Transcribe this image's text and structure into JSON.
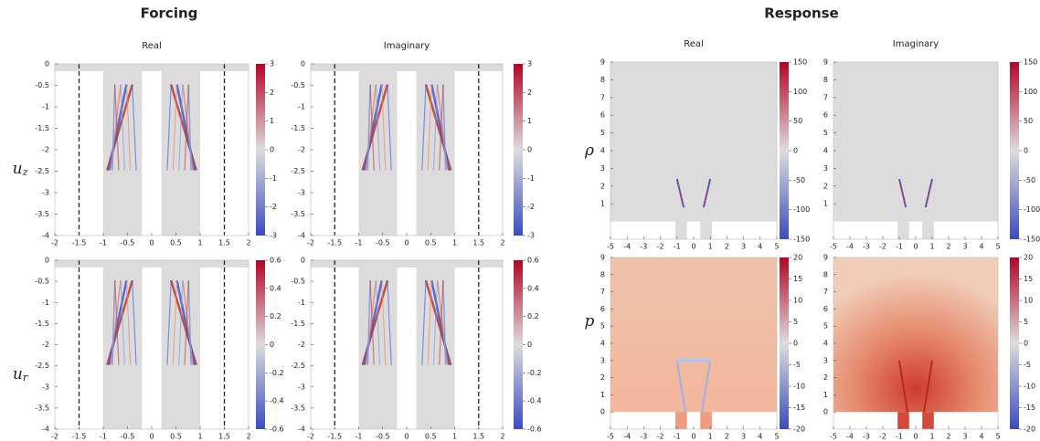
{
  "headers": [
    "Forcing",
    "Response"
  ],
  "row_labels": [
    {
      "base": "u",
      "sub": "z"
    },
    {
      "base": "u",
      "sub": "r"
    },
    {
      "base": "ρ"
    },
    {
      "base": "p"
    }
  ],
  "chart_data": [
    {
      "type": "heatmap",
      "title": "Real",
      "xlim": [
        -2,
        2
      ],
      "ylim": [
        -4,
        0
      ],
      "xticks": [
        -2,
        -1.5,
        -1,
        -0.5,
        0,
        0.5,
        1,
        1.5,
        2
      ],
      "yticks": [
        0,
        -0.5,
        -1,
        -1.5,
        -2,
        -2.5,
        -3,
        -3.5,
        -4
      ],
      "clim": [
        -3,
        3
      ],
      "cticks": [
        3,
        2,
        1,
        0,
        -1,
        -2,
        -3
      ],
      "colors": [
        "#3a4cc0",
        "#dddddd",
        "#b40426"
      ]
    },
    {
      "type": "heatmap",
      "title": "Imaginary",
      "xlim": [
        -2,
        2
      ],
      "ylim": [
        -4,
        0
      ],
      "xticks": [
        -2,
        -1.5,
        -1,
        -0.5,
        0,
        0.5,
        1,
        1.5,
        2
      ],
      "yticks": [
        0,
        -0.5,
        -1,
        -1.5,
        -2,
        -2.5,
        -3,
        -3.5,
        -4
      ],
      "clim": [
        -3,
        3
      ],
      "cticks": [
        3,
        2,
        1,
        0,
        -1,
        -2,
        -3
      ],
      "colors": [
        "#3a4cc0",
        "#dddddd",
        "#b40426"
      ]
    },
    {
      "type": "heatmap",
      "xlim": [
        -2,
        2
      ],
      "ylim": [
        -4,
        0
      ],
      "xticks": [
        -2,
        -1.5,
        -1,
        -0.5,
        0,
        0.5,
        1,
        1.5,
        2
      ],
      "yticks": [
        0,
        -0.5,
        -1,
        -1.5,
        -2,
        -2.5,
        -3,
        -3.5,
        -4
      ],
      "clim": [
        -0.6,
        0.6
      ],
      "cticks": [
        0.6,
        0.4,
        0.2,
        0,
        -0.2,
        -0.4,
        -0.6
      ],
      "colors": [
        "#3a4cc0",
        "#dddddd",
        "#b40426"
      ]
    },
    {
      "type": "heatmap",
      "xlim": [
        -2,
        2
      ],
      "ylim": [
        -4,
        0
      ],
      "xticks": [
        -2,
        -1.5,
        -1,
        -0.5,
        0,
        0.5,
        1,
        1.5,
        2
      ],
      "yticks": [
        0,
        -0.5,
        -1,
        -1.5,
        -2,
        -2.5,
        -3,
        -3.5,
        -4
      ],
      "clim": [
        -0.6,
        0.6
      ],
      "cticks": [
        0.6,
        0.4,
        0.2,
        0,
        -0.2,
        -0.4,
        -0.6
      ],
      "colors": [
        "#3a4cc0",
        "#dddddd",
        "#b40426"
      ]
    },
    {
      "type": "heatmap",
      "title": "Real",
      "xlim": [
        -5,
        5
      ],
      "ylim": [
        -1,
        9
      ],
      "xticks": [
        -5,
        -4,
        -3,
        -2,
        -1,
        0,
        1,
        2,
        3,
        4,
        5
      ],
      "yticks": [
        9,
        8,
        7,
        6,
        5,
        4,
        3,
        2,
        1
      ],
      "clim": [
        -150,
        150
      ],
      "cticks": [
        150,
        100,
        50,
        0,
        -50,
        -100,
        -150
      ],
      "colors": [
        "#3a4cc0",
        "#dddddd",
        "#b40426"
      ]
    },
    {
      "type": "heatmap",
      "title": "Imaginary",
      "xlim": [
        -5,
        5
      ],
      "ylim": [
        -1,
        9
      ],
      "xticks": [
        -5,
        -4,
        -3,
        -2,
        -1,
        0,
        1,
        2,
        3,
        4,
        5
      ],
      "yticks": [
        9,
        8,
        7,
        6,
        5,
        4,
        3,
        2,
        1
      ],
      "clim": [
        -150,
        150
      ],
      "cticks": [
        150,
        100,
        50,
        0,
        -50,
        -100,
        -150
      ],
      "colors": [
        "#3a4cc0",
        "#dddddd",
        "#b40426"
      ]
    },
    {
      "type": "heatmap",
      "xlim": [
        -5,
        5
      ],
      "ylim": [
        -1,
        9
      ],
      "xticks": [
        -5,
        -4,
        -3,
        -2,
        -1,
        0,
        1,
        2,
        3,
        4,
        5
      ],
      "yticks": [
        9,
        8,
        7,
        6,
        5,
        4,
        3,
        2,
        1,
        0
      ],
      "clim": [
        -20,
        20
      ],
      "cticks": [
        20,
        15,
        10,
        5,
        0,
        -5,
        -10,
        -15,
        -20
      ],
      "colors": [
        "#3a4cc0",
        "#dddddd",
        "#b40426"
      ]
    },
    {
      "type": "heatmap",
      "xlim": [
        -5,
        5
      ],
      "ylim": [
        -1,
        9
      ],
      "xticks": [
        -5,
        -4,
        -3,
        -2,
        -1,
        0,
        1,
        2,
        3,
        4,
        5
      ],
      "yticks": [
        9,
        8,
        7,
        6,
        5,
        4,
        3,
        2,
        1,
        0
      ],
      "clim": [
        -20,
        20
      ],
      "cticks": [
        20,
        15,
        10,
        5,
        0,
        -5,
        -10,
        -15,
        -20
      ],
      "colors": [
        "#3a4cc0",
        "#dddddd",
        "#b40426"
      ]
    }
  ]
}
